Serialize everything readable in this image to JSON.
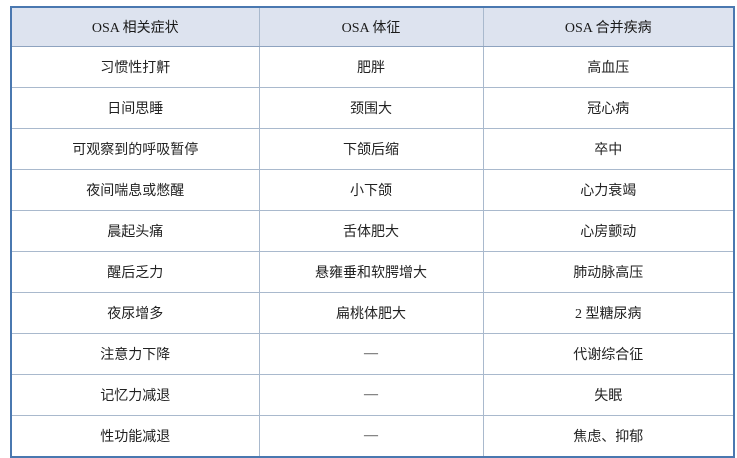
{
  "table": {
    "headers": [
      "OSA 相关症状",
      "OSA 体征",
      "OSA 合并疾病"
    ],
    "rows": [
      [
        "习惯性打鼾",
        "肥胖",
        "高血压"
      ],
      [
        "日间思睡",
        "颈围大",
        "冠心病"
      ],
      [
        "可观察到的呼吸暂停",
        "下颌后缩",
        "卒中"
      ],
      [
        "夜间喘息或憋醒",
        "小下颌",
        "心力衰竭"
      ],
      [
        "晨起头痛",
        "舌体肥大",
        "心房颤动"
      ],
      [
        "醒后乏力",
        "悬雍垂和软腭增大",
        "肺动脉高压"
      ],
      [
        "夜尿增多",
        "扁桃体肥大",
        "2 型糖尿病"
      ],
      [
        "注意力下降",
        "—",
        "代谢综合征"
      ],
      [
        "记忆力减退",
        "—",
        "失眠"
      ],
      [
        "性功能减退",
        "—",
        "焦虑、抑郁"
      ]
    ]
  },
  "colors": {
    "border": "#4a78b0",
    "header_bg": "#dde3ef",
    "grid": "#a9b9cd"
  }
}
